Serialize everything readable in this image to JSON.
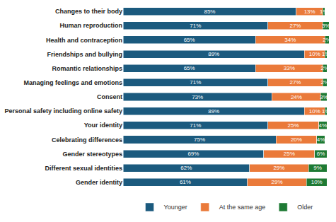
{
  "chart_data": {
    "type": "bar",
    "orientation": "horizontal",
    "stacked": true,
    "data_labels": true,
    "tick_labels": "y",
    "grid": false,
    "legend": "bottom",
    "categories": [
      "Changes to their body",
      "Human reproduction",
      "Health and contraception",
      "Friendships and bullying",
      "Romantic relationships",
      "Managing feelings and emotions",
      "Consent",
      "Personal safety including online safety",
      "Your identity",
      "Celebrating differences",
      "Gender stereotypes",
      "Different sexual identities",
      "Gender identity"
    ],
    "xlim": [
      0,
      101
    ],
    "series": [
      {
        "name": "Younger",
        "color": "#1b5a7e",
        "values": [
          85,
          71,
          65,
          89,
          65,
          71,
          73,
          89,
          71,
          75,
          69,
          62,
          61
        ],
        "value_labels": [
          "85%",
          "71%",
          "65%",
          "89%",
          "65%",
          "71%",
          "73%",
          "89%",
          "71%",
          "75%",
          "69%",
          "62%",
          "61%"
        ]
      },
      {
        "name": "At the same age",
        "color": "#ea7a3a",
        "values": [
          13,
          27,
          34,
          10,
          33,
          27,
          24,
          10,
          25,
          20,
          25,
          29,
          29
        ],
        "value_labels": [
          "13%",
          "27%",
          "34%",
          "10%",
          "33%",
          "27%",
          "24%",
          "10%",
          "25%",
          "20%",
          "25%",
          "29%",
          "29%"
        ]
      },
      {
        "name": "Older",
        "color": "#1e7a34",
        "values": [
          1,
          3,
          2,
          1,
          2,
          2,
          3,
          1,
          4,
          4,
          6,
          9,
          10
        ],
        "value_labels": [
          "1%",
          "3%",
          "2%",
          "1%",
          "2%",
          "2%",
          "3%",
          "1%",
          "4%",
          "4%",
          "6%",
          "9%",
          "10%"
        ]
      }
    ]
  }
}
